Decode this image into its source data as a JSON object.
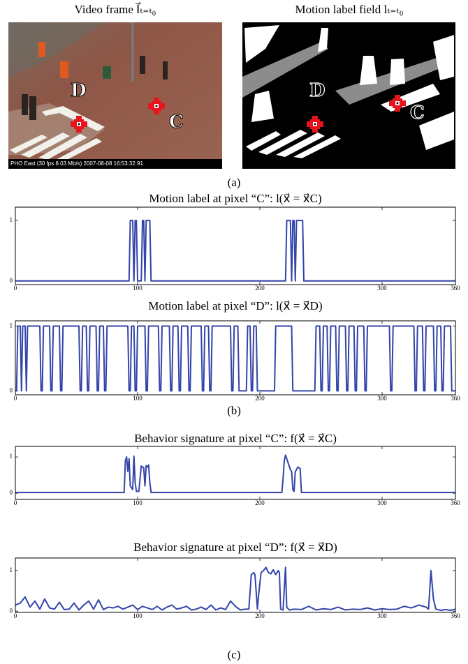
{
  "figure": {
    "left_title": "Video frame I⃗ₜ₌ₜ₀",
    "right_title": "Motion label field lₜ₌ₜ₀",
    "overlay": "PHO East (30 fps  8.03 Mb/s) 2007-08-08 16:53:32.91",
    "point_labels": [
      "D",
      "C"
    ],
    "panel_labels": [
      "(a)",
      "(b)",
      "(c)"
    ]
  },
  "chart_data": [
    {
      "type": "line",
      "title": "Motion label at pixel “C”: l(x⃗ = x⃗C)",
      "color": "#3344aa",
      "xlim": [
        0,
        360
      ],
      "xticks": [
        0,
        100,
        200,
        300,
        360
      ],
      "ylim": [
        -0.06,
        1.22
      ],
      "yticks": [
        0,
        1
      ],
      "x": [
        0,
        93,
        94,
        96,
        97,
        98,
        99,
        100,
        103,
        104,
        105,
        106,
        107,
        110,
        111,
        221,
        222,
        225,
        226,
        227,
        228,
        229,
        230,
        235,
        236,
        360
      ],
      "values": [
        0,
        0,
        1,
        1,
        0,
        1,
        1,
        0,
        0,
        1,
        1,
        0,
        1,
        1,
        0,
        0,
        1,
        1,
        0,
        1,
        1,
        0,
        1,
        1,
        0,
        0
      ]
    },
    {
      "type": "line",
      "title": "Motion label at pixel “D”: l(x⃗ = x⃗D)",
      "color": "#3344aa",
      "xlim": [
        0,
        360
      ],
      "xticks": [
        0,
        100,
        200,
        300,
        360
      ],
      "ylim": [
        -0.06,
        1.08
      ],
      "yticks": [
        0,
        1
      ],
      "x": [
        0,
        1,
        2,
        4,
        5,
        6,
        8,
        9,
        10,
        20,
        21,
        22,
        23,
        28,
        29,
        30,
        31,
        36,
        37,
        38,
        39,
        52,
        53,
        54,
        55,
        58,
        59,
        60,
        61,
        66,
        67,
        68,
        69,
        72,
        73,
        74,
        75,
        92,
        93,
        94,
        95,
        97,
        98,
        99,
        100,
        106,
        107,
        108,
        109,
        117,
        118,
        119,
        120,
        126,
        127,
        128,
        129,
        133,
        134,
        135,
        136,
        141,
        142,
        143,
        144,
        152,
        153,
        154,
        155,
        158,
        159,
        160,
        161,
        176,
        177,
        178,
        179,
        182,
        183,
        189,
        190,
        192,
        193,
        194,
        195,
        197,
        198,
        212,
        213,
        226,
        227,
        245,
        246,
        249,
        250,
        251,
        252,
        255,
        256,
        257,
        258,
        262,
        263,
        264,
        265,
        270,
        271,
        272,
        273,
        277,
        278,
        279,
        280,
        285,
        286,
        287,
        288,
        306,
        307,
        308,
        309,
        326,
        327,
        328,
        329,
        333,
        334,
        335,
        336,
        342,
        343,
        344,
        345,
        348,
        349,
        350,
        351,
        356,
        357,
        360
      ],
      "values": [
        0,
        0,
        1,
        1,
        0,
        1,
        1,
        0,
        1,
        1,
        0,
        0,
        1,
        1,
        0,
        0,
        1,
        1,
        0,
        0,
        1,
        1,
        0,
        0,
        1,
        1,
        0,
        0,
        1,
        1,
        0,
        0,
        1,
        1,
        0,
        0,
        1,
        1,
        0,
        0,
        1,
        1,
        0,
        0,
        1,
        1,
        0,
        0,
        1,
        1,
        0,
        0,
        1,
        1,
        0,
        0,
        1,
        1,
        0,
        0,
        1,
        1,
        0,
        0,
        1,
        1,
        0,
        0,
        1,
        1,
        0,
        0,
        1,
        1,
        0,
        0,
        1,
        1,
        0,
        0,
        1,
        1,
        0,
        0,
        1,
        1,
        0,
        0,
        1,
        1,
        0,
        0,
        1,
        1,
        0,
        0,
        1,
        1,
        0,
        0,
        1,
        1,
        0,
        0,
        1,
        1,
        0,
        0,
        1,
        1,
        0,
        0,
        1,
        1,
        0,
        0,
        1,
        1,
        0,
        0,
        1,
        1,
        0,
        0,
        1,
        1,
        0,
        0,
        1,
        1,
        0,
        0,
        1,
        1,
        0,
        0,
        1,
        1,
        0,
        0
      ]
    },
    {
      "type": "line",
      "title": "Behavior signature at pixel “C”: f(x⃗ = x⃗C)",
      "color": "#3344aa",
      "xlim": [
        0,
        360
      ],
      "xticks": [
        0,
        100,
        200,
        300,
        360
      ],
      "ylim": [
        -0.17,
        1.29
      ],
      "yticks": [
        0,
        1
      ],
      "x": [
        0,
        89,
        90,
        91,
        92,
        93,
        94,
        95,
        96,
        97,
        98,
        99,
        101,
        102,
        103,
        105,
        106,
        107,
        108,
        109,
        110,
        111,
        218,
        219,
        220,
        221,
        222,
        223,
        224,
        225,
        226,
        227,
        228,
        229,
        230,
        231,
        232,
        233,
        234,
        360
      ],
      "values": [
        0.02,
        0.02,
        0.9,
        1.0,
        0.6,
        0.95,
        0.2,
        0.15,
        0.1,
        1.02,
        0.3,
        0.05,
        0.05,
        0.4,
        0.75,
        0.7,
        0.2,
        0.76,
        0.72,
        0.78,
        0.3,
        0.02,
        0.02,
        0.4,
        0.9,
        1.05,
        0.95,
        0.85,
        0.75,
        0.65,
        0.6,
        0.1,
        0.05,
        0.6,
        0.65,
        0.72,
        0.7,
        0.68,
        0.02,
        0.02
      ]
    },
    {
      "type": "line",
      "title": "Behavior signature at pixel “D”: f(x⃗ = x⃗D)",
      "color": "#3344aa",
      "xlim": [
        0,
        360
      ],
      "xticks": [
        0,
        100,
        200,
        300,
        360
      ],
      "ylim": [
        -0.03,
        1.31
      ],
      "yticks": [
        0,
        1
      ],
      "x": [
        0,
        4,
        8,
        12,
        16,
        20,
        24,
        28,
        32,
        36,
        40,
        44,
        48,
        52,
        56,
        60,
        64,
        68,
        72,
        76,
        80,
        84,
        88,
        92,
        96,
        100,
        104,
        108,
        112,
        116,
        120,
        124,
        128,
        132,
        136,
        140,
        144,
        148,
        152,
        156,
        160,
        164,
        168,
        172,
        176,
        180,
        184,
        188,
        191,
        193,
        195,
        196,
        198,
        199,
        201,
        203,
        205,
        207,
        209,
        211,
        213,
        215,
        216,
        217,
        219,
        221,
        222,
        224,
        228,
        234,
        240,
        246,
        252,
        258,
        264,
        270,
        276,
        282,
        288,
        294,
        300,
        306,
        312,
        318,
        324,
        330,
        336,
        338,
        340,
        342,
        344,
        348,
        352,
        356,
        360
      ],
      "values": [
        0.15,
        0.2,
        0.35,
        0.1,
        0.25,
        0.05,
        0.3,
        0.08,
        0.05,
        0.22,
        0.04,
        0.05,
        0.2,
        0.03,
        0.15,
        0.25,
        0.05,
        0.28,
        0.04,
        0.1,
        0.08,
        0.12,
        0.05,
        0.1,
        0.15,
        0.04,
        0.12,
        0.08,
        0.04,
        0.12,
        0.03,
        0.1,
        0.15,
        0.05,
        0.08,
        0.12,
        0.03,
        0.05,
        0.1,
        0.04,
        0.15,
        0.03,
        0.08,
        0.04,
        0.25,
        0.12,
        0.03,
        0.05,
        0.05,
        0.9,
        0.95,
        0.9,
        0.05,
        0.4,
        0.95,
        1.0,
        1.08,
        0.95,
        0.92,
        1.02,
        0.9,
        1.0,
        0.95,
        0.05,
        0.03,
        1.08,
        0.1,
        0.03,
        0.05,
        0.04,
        0.12,
        0.03,
        0.06,
        0.04,
        0.1,
        0.03,
        0.05,
        0.04,
        0.08,
        0.03,
        0.06,
        0.04,
        0.05,
        0.12,
        0.08,
        0.15,
        0.1,
        0.05,
        1.0,
        0.3,
        0.05,
        0.02,
        0.04,
        0.02,
        0.05
      ]
    }
  ]
}
